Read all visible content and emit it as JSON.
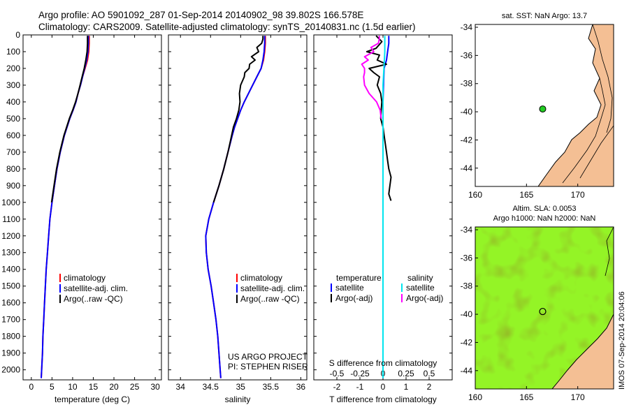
{
  "header": {
    "line1": "Argo profile: AO 5901092_287 01-Sep-2014 20140902_98 39.802S 166.578E",
    "line2": "Climatology: CARS2009. Satellite-adjusted climatology: synTS_20140831.nc (1.5d earlier)"
  },
  "credits": {
    "project_line1": "US ARGO PROJECT",
    "project_line2": "PI: STEPHEN RISER",
    "stamp": "IMOS 07-Sep-2014 20:04:06"
  },
  "colors": {
    "climatology": "#ff0000",
    "satellite": "#0000ff",
    "argo": "#000000",
    "sal_satellite": "#00e5ee",
    "sal_argo": "#ff00ff",
    "land": "#f4bf94",
    "float_marker": "#22cc22"
  },
  "chart_data": [
    {
      "id": "temperature",
      "type": "line",
      "xlabel": "temperature (deg C)",
      "ylabel": "",
      "xlim": [
        -2,
        31.5
      ],
      "ylim": [
        2060,
        0
      ],
      "xticks": [
        0,
        5,
        10,
        15,
        20,
        25,
        30
      ],
      "yticks": [
        0,
        100,
        200,
        300,
        400,
        500,
        600,
        700,
        800,
        900,
        1000,
        1100,
        1200,
        1300,
        1400,
        1500,
        1600,
        1700,
        1800,
        1900,
        2000
      ],
      "legend": [
        "climatology",
        "satellite-adj. clim.",
        "Argo(..raw -QC)"
      ],
      "legend_location": "lower-right",
      "series": [
        {
          "name": "climatology",
          "depth": [
            5,
            50,
            100,
            150,
            200,
            250,
            300,
            350,
            400,
            450,
            500,
            600,
            700,
            800,
            900,
            1000,
            1100,
            1200,
            1300,
            1400,
            1500,
            1600,
            1700,
            1800,
            1900,
            2000,
            2050
          ],
          "values": [
            14.0,
            14.0,
            13.9,
            13.6,
            13.0,
            12.4,
            11.9,
            11.3,
            10.8,
            10.1,
            9.3,
            8.0,
            7.0,
            6.2,
            5.6,
            5.0,
            4.5,
            4.2,
            3.9,
            3.6,
            3.4,
            3.2,
            3.0,
            2.8,
            2.7,
            2.5,
            2.4
          ]
        },
        {
          "name": "satellite-adj. clim.",
          "depth": [
            5,
            50,
            100,
            150,
            200,
            250,
            300,
            350,
            400,
            450,
            500,
            600,
            700,
            800,
            900,
            1000,
            1100,
            1200,
            1300,
            1400,
            1500,
            1600,
            1700,
            1800,
            1900,
            2000,
            2050
          ],
          "values": [
            13.8,
            13.8,
            13.7,
            13.4,
            12.9,
            12.4,
            11.9,
            11.3,
            10.8,
            10.1,
            9.3,
            8.0,
            7.0,
            6.2,
            5.6,
            5.0,
            4.5,
            4.2,
            3.9,
            3.6,
            3.4,
            3.2,
            3.0,
            2.8,
            2.7,
            2.5,
            2.4
          ]
        },
        {
          "name": "Argo(..raw -QC)",
          "depth": [
            5,
            50,
            100,
            150,
            200,
            250,
            300,
            350,
            400,
            450,
            500,
            600,
            700,
            800,
            900,
            1000
          ],
          "values": [
            13.6,
            13.6,
            13.5,
            13.2,
            12.8,
            12.3,
            11.8,
            11.3,
            10.7,
            10.0,
            9.2,
            7.9,
            6.9,
            6.1,
            5.5,
            4.9
          ]
        }
      ]
    },
    {
      "id": "salinity",
      "type": "line",
      "xlabel": "salinity",
      "ylabel": "",
      "xlim": [
        33.8,
        36.1
      ],
      "ylim": [
        2060,
        0
      ],
      "xticks": [
        34,
        34.5,
        35,
        35.5,
        36
      ],
      "legend": [
        "climatology",
        "satellite-adj. clim.",
        "Argo(..raw -QC)"
      ],
      "legend_location": "lower-right",
      "series": [
        {
          "name": "climatology",
          "depth": [
            5,
            50,
            100,
            150,
            200,
            250,
            300,
            350,
            400,
            450,
            500,
            550,
            600,
            700,
            800,
            900,
            1000,
            1100,
            1200,
            1300,
            1400,
            1500,
            1600,
            1700,
            1800,
            1900,
            2000,
            2050
          ],
          "values": [
            35.41,
            35.41,
            35.4,
            35.38,
            35.34,
            35.27,
            35.2,
            35.13,
            35.06,
            35.0,
            34.95,
            34.9,
            34.86,
            34.79,
            34.72,
            34.64,
            34.55,
            34.47,
            34.42,
            34.43,
            34.46,
            34.51,
            34.55,
            34.59,
            34.62,
            34.64,
            34.66,
            34.67
          ]
        },
        {
          "name": "satellite-adj. clim.",
          "depth": [
            5,
            50,
            100,
            150,
            200,
            250,
            300,
            350,
            400,
            450,
            500,
            550,
            600,
            700,
            800,
            900,
            1000,
            1100,
            1200,
            1300,
            1400,
            1500,
            1600,
            1700,
            1800,
            1900,
            2000,
            2050
          ],
          "values": [
            35.4,
            35.4,
            35.39,
            35.37,
            35.34,
            35.27,
            35.2,
            35.13,
            35.06,
            35.0,
            34.95,
            34.9,
            34.86,
            34.79,
            34.72,
            34.64,
            34.55,
            34.47,
            34.42,
            34.43,
            34.46,
            34.51,
            34.55,
            34.59,
            34.62,
            34.64,
            34.66,
            34.67
          ]
        },
        {
          "name": "Argo(..raw -QC)",
          "depth": [
            5,
            25,
            50,
            75,
            100,
            130,
            150,
            175,
            200,
            225,
            250,
            300,
            350,
            400,
            450,
            500,
            550,
            600,
            700,
            800,
            900,
            1000
          ],
          "values": [
            35.37,
            35.37,
            35.35,
            35.27,
            35.3,
            35.18,
            35.24,
            35.15,
            35.14,
            35.07,
            35.06,
            35.0,
            34.98,
            34.99,
            34.97,
            34.93,
            34.88,
            34.85,
            34.79,
            34.72,
            34.64,
            34.55
          ]
        }
      ]
    },
    {
      "id": "difference",
      "type": "line",
      "xlabel": "T difference from climatology",
      "x2label": "S difference from climatology",
      "ylabel": "",
      "xlim": [
        -3.0,
        3.0
      ],
      "ylim": [
        2060,
        0
      ],
      "xticks": [
        -2,
        -1,
        0,
        1,
        2
      ],
      "x2lim": [
        -0.75,
        0.75
      ],
      "x2ticks": [
        -0.5,
        -0.25,
        0,
        0.25,
        0.5
      ],
      "legend_headers": [
        "temperature",
        "salinity"
      ],
      "legend": [
        "satellite",
        "Argo(-adj)",
        "satellite",
        "Argo(-adj)"
      ],
      "series": [
        {
          "name": "temperature satellite",
          "depth": [
            5,
            50,
            100,
            150,
            200,
            300,
            400,
            500,
            600,
            700,
            800,
            900,
            1000,
            1200,
            1400,
            1600,
            1800,
            2000,
            2050
          ],
          "values": [
            0.25,
            0.25,
            0.2,
            0.15,
            0.05,
            0.02,
            0.0,
            0.0,
            0.0,
            0.0,
            0.0,
            0.0,
            0.0,
            0.0,
            0.0,
            0.0,
            0.0,
            0.0,
            0.0
          ]
        },
        {
          "name": "temperature Argo(-adj)",
          "depth": [
            5,
            40,
            80,
            100,
            120,
            150,
            175,
            200,
            225,
            250,
            300,
            350,
            400,
            450,
            500,
            550,
            600,
            650,
            700,
            750,
            800,
            850,
            900,
            950,
            990
          ],
          "values": [
            -0.3,
            -0.05,
            -0.3,
            -0.7,
            -0.15,
            -0.25,
            0.15,
            -0.6,
            -0.4,
            -0.15,
            -0.25,
            -0.1,
            -0.05,
            -0.08,
            -0.1,
            0.0,
            0.05,
            0.1,
            0.15,
            0.2,
            0.25,
            0.35,
            0.3,
            0.25,
            0.35
          ]
        },
        {
          "name": "salinity satellite",
          "depth": [
            5,
            50,
            100,
            200,
            300,
            400,
            500,
            600,
            700,
            800,
            900,
            1000,
            1200,
            1400,
            1600,
            1800,
            2000,
            2050
          ],
          "values": [
            0.02,
            0.02,
            0.02,
            0.01,
            0.0,
            0.0,
            0.0,
            0.0,
            0.0,
            0.0,
            0.0,
            0.0,
            0.0,
            0.0,
            0.0,
            0.0,
            0.0,
            0.0
          ]
        },
        {
          "name": "salinity Argo(-adj)",
          "depth": [
            5,
            25,
            50,
            75,
            100,
            130,
            150,
            175,
            200,
            225,
            250,
            300,
            350,
            400,
            450,
            500
          ],
          "values": [
            -0.04,
            -0.04,
            -0.05,
            -0.13,
            -0.1,
            -0.2,
            -0.16,
            -0.23,
            -0.2,
            -0.2,
            -0.21,
            -0.2,
            -0.15,
            -0.07,
            -0.03,
            -0.02
          ]
        }
      ]
    },
    {
      "id": "sst_map",
      "type": "scatter",
      "title": "sat. SST: NaN Argo: 13.7",
      "xlim": [
        160,
        173.5
      ],
      "ylim": [
        -45.3,
        -33.8
      ],
      "xticks": [
        160,
        165,
        170
      ],
      "yticks": [
        -34,
        -36,
        -38,
        -40,
        -42,
        -44
      ],
      "float_position": [
        166.578,
        -39.802
      ]
    },
    {
      "id": "sla_map",
      "type": "heatmap",
      "title_line1": "Altim. SLA: 0.0053",
      "title_line2": "Argo h1000: NaN h2000: NaN",
      "xlim": [
        160,
        173.5
      ],
      "ylim": [
        -45.3,
        -33.8
      ],
      "xticks": [
        160,
        165,
        170
      ],
      "yticks": [
        -34,
        -36,
        -38,
        -40,
        -42,
        -44
      ],
      "float_position": [
        166.578,
        -39.802
      ]
    }
  ]
}
